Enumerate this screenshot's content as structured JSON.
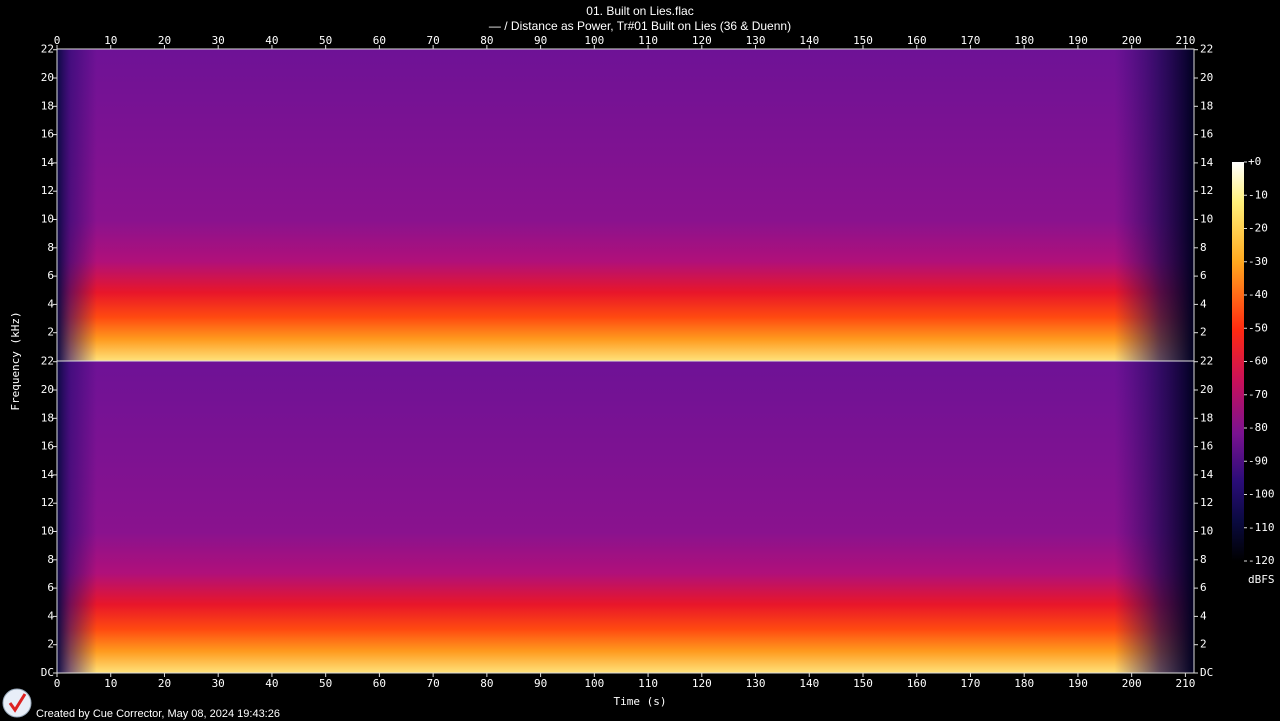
{
  "chart_data": {
    "type": "spectrogram",
    "title": "01. Built on Lies.flac",
    "subtitle": "— / Distance as Power, Tr#01 Built on Lies (36 & Duenn)",
    "xlabel": "Time (s)",
    "ylabel": "Frequency (kHz)",
    "xlim": [
      0,
      211.6
    ],
    "xticks": [
      0,
      10,
      20,
      30,
      40,
      50,
      60,
      70,
      80,
      90,
      100,
      110,
      120,
      130,
      140,
      150,
      160,
      170,
      180,
      190,
      200,
      210
    ],
    "ylim": [
      0,
      22.05
    ],
    "channels": [
      {
        "yticks": [
          2,
          4,
          6,
          8,
          10,
          12,
          14,
          16,
          18,
          20,
          22
        ]
      },
      {
        "yticks": [
          {
            "value": 0,
            "label": "DC"
          },
          2,
          4,
          6,
          8,
          10,
          12,
          14,
          16,
          18,
          20,
          22
        ]
      }
    ],
    "colorbar": {
      "label": "dBFS",
      "lim": [
        -120,
        0
      ],
      "ticks": [
        {
          "value": 0,
          "label": "+0"
        },
        -10,
        -20,
        -30,
        -40,
        -50,
        -60,
        -70,
        -80,
        -90,
        -100,
        -110,
        -120
      ]
    }
  },
  "footer": "Created by Cue Corrector, May 08, 2024 19:43:26"
}
